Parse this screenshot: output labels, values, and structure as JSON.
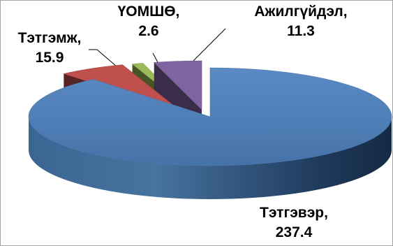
{
  "chart_data": {
    "type": "pie",
    "title": "",
    "style": "3d-exploded",
    "legend": "none",
    "series": [
      {
        "name": "",
        "slices": [
          {
            "label": "Тэтгэвэр",
            "value": 237.4,
            "value_text": "237.4",
            "color": "#4F81BD"
          },
          {
            "label": "Тэтгэмж",
            "value": 15.9,
            "value_text": "15.9",
            "color": "#C0504D"
          },
          {
            "label": "ҮОМШӨ",
            "value": 2.6,
            "value_text": "2.6",
            "color": "#9BBB59"
          },
          {
            "label": "Ажилгүйдэл",
            "value": 11.3,
            "value_text": "11.3",
            "color": "#8064A2"
          }
        ]
      }
    ]
  }
}
